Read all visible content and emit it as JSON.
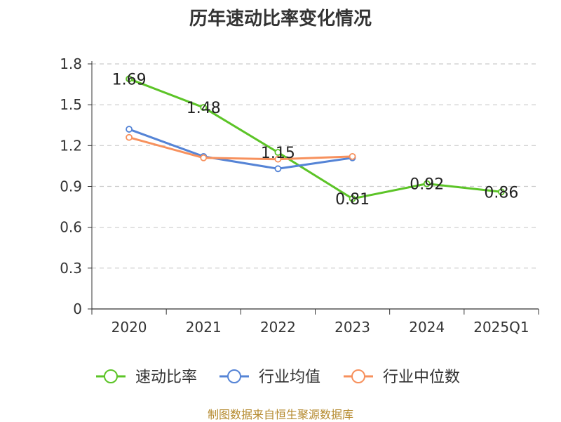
{
  "title": "历年速动比率变化情况",
  "source": "制图数据来自恒生聚源数据库",
  "chart_data": {
    "type": "line",
    "title": "历年速动比率变化情况",
    "categories": [
      "2020",
      "2021",
      "2022",
      "2023",
      "2024",
      "2025Q1"
    ],
    "ylim": [
      0,
      1.8
    ],
    "yticks": [
      "0",
      "0.3",
      "0.6",
      "0.9",
      "1.2",
      "1.5",
      "1.8"
    ],
    "grid": true,
    "legend_position": "bottom",
    "series": [
      {
        "name": "速动比率",
        "color": "#5cc427",
        "values": [
          1.69,
          1.48,
          1.15,
          0.81,
          0.92,
          0.86
        ],
        "labels": [
          "1.69",
          "1.48",
          "1.15",
          "0.81",
          "0.92",
          "0.86"
        ]
      },
      {
        "name": "行业均值",
        "color": "#5584d6",
        "values": [
          1.32,
          1.12,
          1.03,
          1.11,
          null,
          null
        ]
      },
      {
        "name": "行业中位数",
        "color": "#f7915d",
        "values": [
          1.26,
          1.11,
          1.1,
          1.12,
          null,
          null
        ]
      }
    ]
  }
}
